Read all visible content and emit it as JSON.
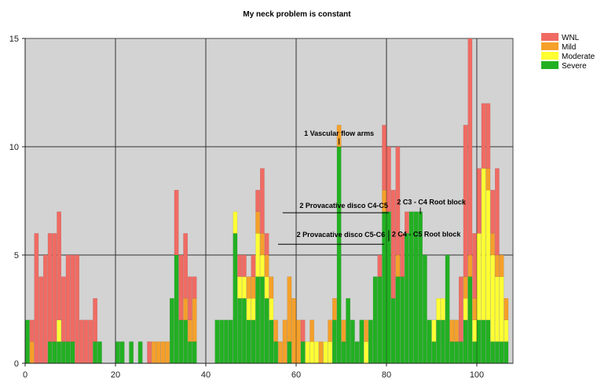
{
  "chart_data": {
    "type": "bar",
    "stacked": true,
    "title": "My neck problem is constant",
    "xlabel": "",
    "ylabel": "",
    "xlim": [
      0,
      108
    ],
    "ylim": [
      0,
      15
    ],
    "x_ticks": [
      0,
      20,
      40,
      60,
      80,
      100
    ],
    "y_ticks": [
      0,
      5,
      10,
      15
    ],
    "grid": true,
    "legend_position": "top-right",
    "series": [
      {
        "name": "WNL",
        "color": "#f06b63",
        "points": [
          [
            1,
            1
          ],
          [
            2,
            6
          ],
          [
            3,
            4
          ],
          [
            4,
            5
          ],
          [
            5,
            5
          ],
          [
            6,
            5
          ],
          [
            7,
            5
          ],
          [
            8,
            3
          ],
          [
            9,
            4
          ],
          [
            10,
            4
          ],
          [
            11,
            5
          ],
          [
            12,
            2
          ],
          [
            13,
            2
          ],
          [
            14,
            2
          ],
          [
            15,
            2
          ],
          [
            27,
            1
          ],
          [
            33,
            3
          ],
          [
            34,
            3
          ],
          [
            35,
            3
          ],
          [
            36,
            2
          ],
          [
            37,
            1
          ],
          [
            47,
            1
          ],
          [
            48,
            1
          ],
          [
            50,
            1
          ],
          [
            51,
            1
          ],
          [
            52,
            3
          ],
          [
            53,
            1
          ],
          [
            61,
            1
          ],
          [
            78,
            1
          ],
          [
            79,
            3
          ],
          [
            80,
            3
          ],
          [
            81,
            5
          ],
          [
            82,
            5
          ],
          [
            83,
            2
          ],
          [
            84,
            1
          ],
          [
            96,
            3
          ],
          [
            97,
            7
          ],
          [
            98,
            10
          ],
          [
            99,
            3
          ],
          [
            100,
            3
          ],
          [
            101,
            3
          ],
          [
            102,
            3
          ],
          [
            103,
            2
          ],
          [
            104,
            4
          ]
        ]
      },
      {
        "name": "Mild",
        "color": "#f5a02a",
        "points": [
          [
            1,
            1
          ],
          [
            28,
            1
          ],
          [
            29,
            1
          ],
          [
            30,
            1
          ],
          [
            31,
            1
          ],
          [
            35,
            1
          ],
          [
            36,
            1
          ],
          [
            37,
            2
          ],
          [
            49,
            1
          ],
          [
            50,
            1
          ],
          [
            51,
            1
          ],
          [
            52,
            1
          ],
          [
            53,
            1
          ],
          [
            54,
            1
          ],
          [
            55,
            1
          ],
          [
            56,
            1
          ],
          [
            57,
            2
          ],
          [
            58,
            3
          ],
          [
            59,
            3
          ],
          [
            60,
            2
          ],
          [
            63,
            1
          ],
          [
            65,
            1
          ],
          [
            67,
            1
          ],
          [
            68,
            1
          ],
          [
            69,
            1
          ],
          [
            70,
            1
          ],
          [
            75,
            1
          ],
          [
            79,
            1
          ],
          [
            82,
            1
          ],
          [
            94,
            1
          ],
          [
            95,
            1
          ],
          [
            97,
            1
          ],
          [
            98,
            1
          ],
          [
            99,
            1
          ],
          [
            102,
            1
          ],
          [
            103,
            1
          ],
          [
            104,
            1
          ],
          [
            105,
            1
          ],
          [
            106,
            1
          ]
        ]
      },
      {
        "name": "Moderate",
        "color": "#ffff33",
        "points": [
          [
            7,
            1
          ],
          [
            46,
            1
          ],
          [
            47,
            1
          ],
          [
            48,
            1
          ],
          [
            49,
            1
          ],
          [
            50,
            1
          ],
          [
            51,
            2
          ],
          [
            52,
            1
          ],
          [
            53,
            1
          ],
          [
            54,
            1
          ],
          [
            62,
            1
          ],
          [
            63,
            1
          ],
          [
            64,
            1
          ],
          [
            66,
            1
          ],
          [
            67,
            1
          ],
          [
            75,
            1
          ],
          [
            90,
            1
          ],
          [
            91,
            1
          ],
          [
            92,
            1
          ],
          [
            97,
            1
          ],
          [
            99,
            1
          ],
          [
            100,
            4
          ],
          [
            101,
            7
          ],
          [
            102,
            6
          ],
          [
            103,
            4
          ],
          [
            104,
            3
          ],
          [
            105,
            3
          ],
          [
            106,
            1
          ]
        ]
      },
      {
        "name": "Severe",
        "color": "#22b022",
        "points": [
          [
            0,
            2
          ],
          [
            5,
            1
          ],
          [
            6,
            1
          ],
          [
            7,
            1
          ],
          [
            8,
            1
          ],
          [
            9,
            1
          ],
          [
            10,
            1
          ],
          [
            15,
            1
          ],
          [
            16,
            1
          ],
          [
            20,
            1
          ],
          [
            21,
            1
          ],
          [
            23,
            1
          ],
          [
            25,
            1
          ],
          [
            32,
            3
          ],
          [
            33,
            5
          ],
          [
            34,
            2
          ],
          [
            35,
            2
          ],
          [
            36,
            1
          ],
          [
            37,
            1
          ],
          [
            42,
            2
          ],
          [
            43,
            2
          ],
          [
            44,
            2
          ],
          [
            45,
            2
          ],
          [
            46,
            6
          ],
          [
            47,
            3
          ],
          [
            48,
            3
          ],
          [
            49,
            2
          ],
          [
            50,
            2
          ],
          [
            51,
            4
          ],
          [
            52,
            4
          ],
          [
            53,
            3
          ],
          [
            54,
            2
          ],
          [
            55,
            1
          ],
          [
            58,
            1
          ],
          [
            61,
            1
          ],
          [
            68,
            2
          ],
          [
            69,
            10
          ],
          [
            70,
            1
          ],
          [
            71,
            3
          ],
          [
            72,
            2
          ],
          [
            73,
            1
          ],
          [
            74,
            2
          ],
          [
            76,
            2
          ],
          [
            77,
            4
          ],
          [
            78,
            4
          ],
          [
            79,
            7
          ],
          [
            80,
            7
          ],
          [
            81,
            3
          ],
          [
            82,
            4
          ],
          [
            83,
            4
          ],
          [
            84,
            6
          ],
          [
            85,
            7
          ],
          [
            86,
            7
          ],
          [
            87,
            7
          ],
          [
            88,
            5
          ],
          [
            89,
            2
          ],
          [
            90,
            1
          ],
          [
            91,
            2
          ],
          [
            92,
            2
          ],
          [
            93,
            5
          ],
          [
            94,
            1
          ],
          [
            95,
            1
          ],
          [
            96,
            1
          ],
          [
            97,
            2
          ],
          [
            98,
            4
          ],
          [
            99,
            1
          ],
          [
            100,
            2
          ],
          [
            101,
            2
          ],
          [
            102,
            2
          ],
          [
            103,
            1
          ],
          [
            104,
            1
          ],
          [
            105,
            1
          ],
          [
            106,
            1
          ]
        ]
      }
    ],
    "annotations": [
      {
        "text": "1 Vascular flow arms",
        "x": 69,
        "y": 10.1
      },
      {
        "text": "2 Provacative disco C4-C5",
        "x": 80,
        "y": 6.95,
        "x_start": 57
      },
      {
        "text": "2 C3 - C4 Root block",
        "x": 87,
        "y": 6.9
      },
      {
        "text": "2 Provacative disco C5-C6",
        "x": 79,
        "y": 5.5,
        "x_start": 56
      },
      {
        "text": "2 C4 - C5 Root block",
        "x": 80,
        "y": 6.0
      }
    ]
  }
}
